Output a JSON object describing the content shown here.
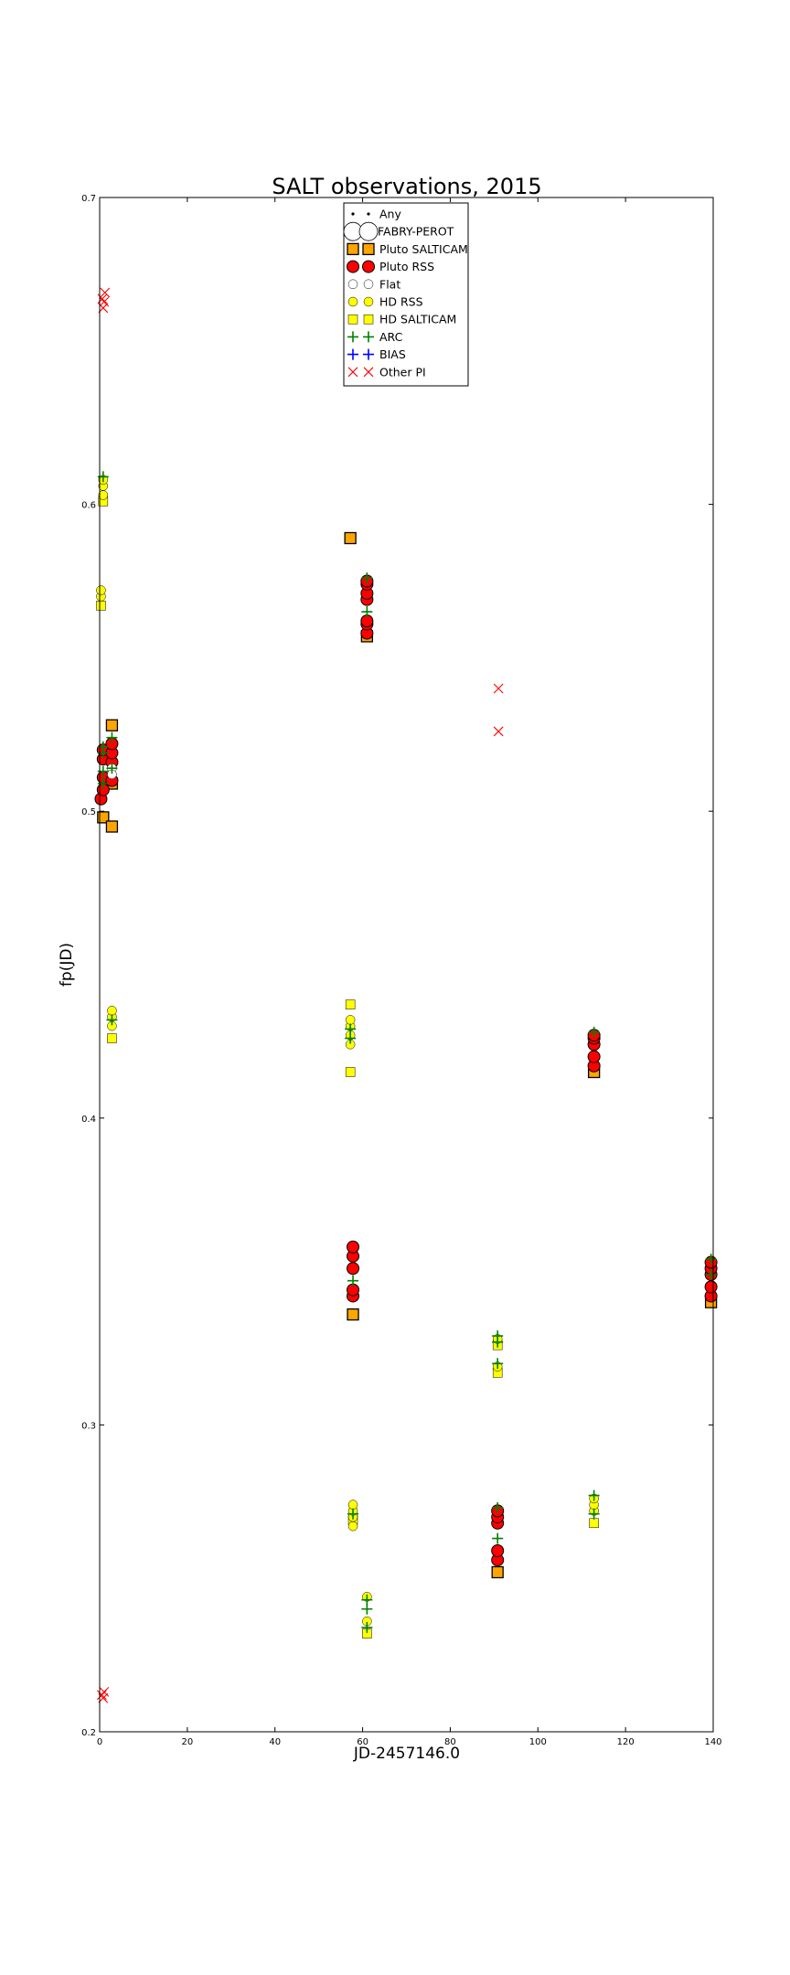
{
  "chart_data": {
    "type": "scatter",
    "title": "SALT observations, 2015",
    "xlabel": "JD-2457146.0",
    "ylabel": "fp(JD)",
    "xlim": [
      0,
      140
    ],
    "ylim": [
      0.2,
      0.7
    ],
    "xticks": [
      "0",
      "20",
      "40",
      "60",
      "80",
      "100",
      "120",
      "140"
    ],
    "yticks": [
      "0.2",
      "0.3",
      "0.4",
      "0.5",
      "0.6",
      "0.7"
    ],
    "legend_position": "top-center",
    "grid": false,
    "series": [
      {
        "name": "Any",
        "marker": "dot",
        "color": "#000000",
        "points": []
      },
      {
        "name": "FABRY-PEROT",
        "marker": "big-circle-open",
        "color": "#ffffff",
        "points": []
      },
      {
        "name": "Pluto SALTICAM",
        "marker": "square",
        "color": "#ffa500",
        "points": [
          [
            0.8,
            0.498
          ],
          [
            2.8,
            0.495
          ],
          [
            2.8,
            0.509
          ],
          [
            2.8,
            0.528
          ],
          [
            57.2,
            0.589
          ],
          [
            61.0,
            0.557
          ],
          [
            57.8,
            0.336
          ],
          [
            90.8,
            0.252
          ],
          [
            112.8,
            0.415
          ],
          [
            139.5,
            0.34
          ]
        ]
      },
      {
        "name": "Pluto RSS",
        "marker": "circle",
        "color": "#ff0000",
        "points": [
          [
            0.3,
            0.504
          ],
          [
            0.8,
            0.507
          ],
          [
            0.8,
            0.511
          ],
          [
            0.8,
            0.517
          ],
          [
            0.8,
            0.52
          ],
          [
            2.8,
            0.51
          ],
          [
            2.8,
            0.516
          ],
          [
            2.8,
            0.519
          ],
          [
            2.8,
            0.522
          ],
          [
            61.0,
            0.558
          ],
          [
            61.0,
            0.561
          ],
          [
            61.0,
            0.562
          ],
          [
            61.0,
            0.569
          ],
          [
            61.0,
            0.571
          ],
          [
            61.0,
            0.574
          ],
          [
            61.0,
            0.575
          ],
          [
            57.8,
            0.342
          ],
          [
            57.8,
            0.344
          ],
          [
            57.8,
            0.351
          ],
          [
            57.8,
            0.355
          ],
          [
            57.8,
            0.358
          ],
          [
            90.8,
            0.256
          ],
          [
            90.8,
            0.259
          ],
          [
            90.8,
            0.268
          ],
          [
            90.8,
            0.27
          ],
          [
            90.8,
            0.272
          ],
          [
            112.8,
            0.417
          ],
          [
            112.8,
            0.42
          ],
          [
            112.8,
            0.424
          ],
          [
            112.8,
            0.426
          ],
          [
            112.8,
            0.427
          ],
          [
            139.5,
            0.342
          ],
          [
            139.5,
            0.345
          ],
          [
            139.5,
            0.349
          ],
          [
            139.5,
            0.351
          ],
          [
            139.5,
            0.353
          ]
        ]
      },
      {
        "name": "Flat",
        "marker": "circle-open",
        "color": "#ffffff",
        "points": [
          [
            2.8,
            0.514
          ],
          [
            2.8,
            0.512
          ]
        ]
      },
      {
        "name": "HD RSS",
        "marker": "circle",
        "color": "#ffff00",
        "points": [
          [
            0.3,
            0.57
          ],
          [
            0.3,
            0.572
          ],
          [
            0.8,
            0.603
          ],
          [
            0.8,
            0.606
          ],
          [
            0.8,
            0.608
          ],
          [
            2.8,
            0.43
          ],
          [
            2.8,
            0.433
          ],
          [
            2.8,
            0.435
          ],
          [
            57.2,
            0.424
          ],
          [
            57.2,
            0.427
          ],
          [
            57.2,
            0.43
          ],
          [
            57.2,
            0.432
          ],
          [
            57.8,
            0.267
          ],
          [
            57.8,
            0.27
          ],
          [
            57.8,
            0.272
          ],
          [
            57.8,
            0.274
          ],
          [
            61.0,
            0.236
          ],
          [
            61.0,
            0.244
          ],
          [
            90.8,
            0.319
          ],
          [
            90.8,
            0.328
          ],
          [
            112.8,
            0.272
          ],
          [
            112.8,
            0.274
          ],
          [
            112.8,
            0.276
          ]
        ]
      },
      {
        "name": "HD SALTICAM",
        "marker": "square",
        "color": "#ffff00",
        "points": [
          [
            0.3,
            0.567
          ],
          [
            0.8,
            0.601
          ],
          [
            2.8,
            0.426
          ],
          [
            57.2,
            0.415
          ],
          [
            57.2,
            0.437
          ],
          [
            57.8,
            0.269
          ],
          [
            61.0,
            0.232
          ],
          [
            90.8,
            0.317
          ],
          [
            90.8,
            0.326
          ],
          [
            112.8,
            0.268
          ]
        ]
      },
      {
        "name": "ARC",
        "marker": "plus",
        "color": "#008000",
        "points": [
          [
            0.8,
            0.509
          ],
          [
            0.8,
            0.513
          ],
          [
            0.8,
            0.519
          ],
          [
            0.8,
            0.521
          ],
          [
            0.8,
            0.609
          ],
          [
            2.8,
            0.432
          ],
          [
            2.8,
            0.514
          ],
          [
            2.8,
            0.524
          ],
          [
            57.2,
            0.426
          ],
          [
            57.2,
            0.429
          ],
          [
            57.8,
            0.271
          ],
          [
            57.8,
            0.347
          ],
          [
            61.0,
            0.234
          ],
          [
            61.0,
            0.24
          ],
          [
            61.0,
            0.243
          ],
          [
            61.0,
            0.565
          ],
          [
            61.0,
            0.576
          ],
          [
            90.8,
            0.263
          ],
          [
            90.8,
            0.273
          ],
          [
            90.8,
            0.32
          ],
          [
            90.8,
            0.327
          ],
          [
            90.8,
            0.329
          ],
          [
            112.8,
            0.271
          ],
          [
            112.8,
            0.277
          ],
          [
            112.8,
            0.428
          ],
          [
            139.5,
            0.349
          ],
          [
            139.5,
            0.354
          ]
        ]
      },
      {
        "name": "BIAS",
        "marker": "plus",
        "color": "#0000ff",
        "points": []
      },
      {
        "name": "Other PI",
        "marker": "x",
        "color": "#ff0000",
        "points": [
          [
            0.5,
            0.212
          ],
          [
            0.8,
            0.211
          ],
          [
            1.0,
            0.213
          ],
          [
            0.8,
            0.664
          ],
          [
            1.0,
            0.666
          ],
          [
            1.2,
            0.669
          ],
          [
            0.6,
            0.667
          ],
          [
            91.0,
            0.526
          ],
          [
            91.0,
            0.54
          ]
        ]
      }
    ]
  }
}
